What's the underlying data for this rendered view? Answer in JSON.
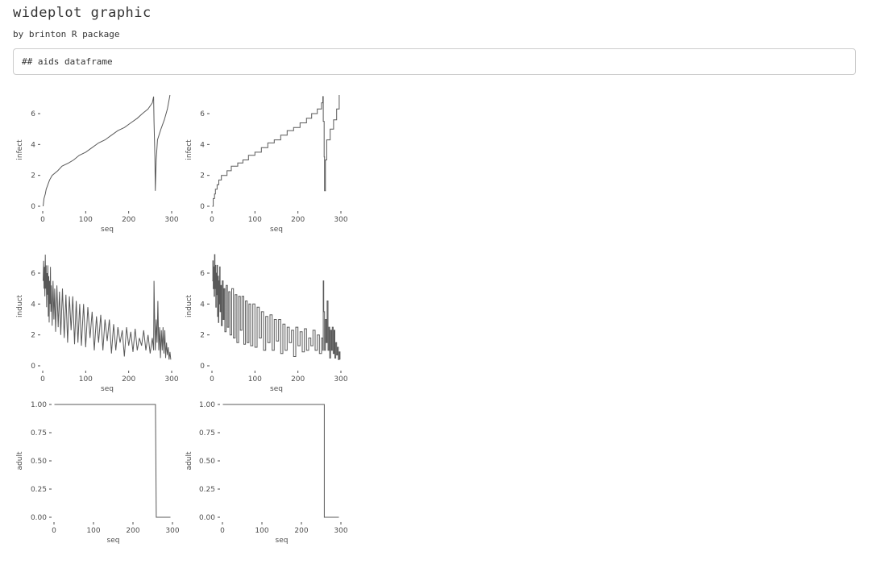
{
  "page": {
    "title": "wideplot graphic",
    "subtitle": "by brinton R package",
    "code_output": "## aids dataframe"
  },
  "colors": {
    "line": "#595959",
    "tick": "#4d4d4d",
    "text": "#4d4d4d"
  },
  "chart_data": [
    {
      "type": "line",
      "panel": "infect-left",
      "xlabel": "seq",
      "ylabel": "infect",
      "xlim": [
        0,
        300
      ],
      "ylim": [
        0,
        7.2
      ],
      "xticks": [
        0,
        100,
        200,
        300
      ],
      "yticks": [
        0,
        2,
        4,
        6
      ],
      "ytick_labels": [
        "0",
        "2",
        "4",
        "6"
      ],
      "step": false,
      "points": [
        [
          1,
          0
        ],
        [
          3,
          0.5
        ],
        [
          6,
          0.8
        ],
        [
          8,
          1.1
        ],
        [
          12,
          1.4
        ],
        [
          16,
          1.7
        ],
        [
          22,
          2.0
        ],
        [
          35,
          2.3
        ],
        [
          45,
          2.6
        ],
        [
          60,
          2.8
        ],
        [
          72,
          3.0
        ],
        [
          85,
          3.3
        ],
        [
          100,
          3.5
        ],
        [
          115,
          3.8
        ],
        [
          130,
          4.1
        ],
        [
          145,
          4.3
        ],
        [
          160,
          4.6
        ],
        [
          175,
          4.9
        ],
        [
          190,
          5.1
        ],
        [
          205,
          5.4
        ],
        [
          220,
          5.7
        ],
        [
          232,
          6.0
        ],
        [
          245,
          6.3
        ],
        [
          255,
          6.7
        ],
        [
          258,
          7.1
        ],
        [
          259,
          5.5
        ],
        [
          261,
          3.2
        ],
        [
          262,
          1.0
        ],
        [
          264,
          3.0
        ],
        [
          267,
          4.3
        ],
        [
          275,
          5.0
        ],
        [
          283,
          5.6
        ],
        [
          290,
          6.3
        ],
        [
          296,
          7.2
        ]
      ]
    },
    {
      "type": "line",
      "panel": "infect-right",
      "xlabel": "seq",
      "ylabel": "infect",
      "xlim": [
        0,
        300
      ],
      "ylim": [
        0,
        7.2
      ],
      "xticks": [
        0,
        100,
        200,
        300
      ],
      "yticks": [
        0,
        2,
        4,
        6
      ],
      "ytick_labels": [
        "0",
        "2",
        "4",
        "6"
      ],
      "step": true,
      "points": [
        [
          1,
          0
        ],
        [
          3,
          0.5
        ],
        [
          6,
          0.8
        ],
        [
          8,
          1.1
        ],
        [
          12,
          1.4
        ],
        [
          16,
          1.7
        ],
        [
          22,
          2.0
        ],
        [
          35,
          2.3
        ],
        [
          45,
          2.6
        ],
        [
          60,
          2.8
        ],
        [
          72,
          3.0
        ],
        [
          85,
          3.3
        ],
        [
          100,
          3.5
        ],
        [
          115,
          3.8
        ],
        [
          130,
          4.1
        ],
        [
          145,
          4.3
        ],
        [
          160,
          4.6
        ],
        [
          175,
          4.9
        ],
        [
          190,
          5.1
        ],
        [
          205,
          5.4
        ],
        [
          220,
          5.7
        ],
        [
          232,
          6.0
        ],
        [
          245,
          6.3
        ],
        [
          255,
          6.7
        ],
        [
          258,
          7.1
        ],
        [
          259,
          5.5
        ],
        [
          261,
          3.2
        ],
        [
          262,
          1.0
        ],
        [
          264,
          3.0
        ],
        [
          267,
          4.3
        ],
        [
          275,
          5.0
        ],
        [
          283,
          5.6
        ],
        [
          290,
          6.3
        ],
        [
          296,
          7.2
        ]
      ]
    },
    {
      "type": "line",
      "panel": "induct-left",
      "xlabel": "seq",
      "ylabel": "induct",
      "xlim": [
        0,
        300
      ],
      "ylim": [
        0,
        7.2
      ],
      "xticks": [
        0,
        100,
        200,
        300
      ],
      "yticks": [
        0,
        2,
        4,
        6
      ],
      "ytick_labels": [
        "0",
        "2",
        "4",
        "6"
      ],
      "step": false,
      "points": [
        [
          1,
          5.5
        ],
        [
          2,
          6.8
        ],
        [
          3,
          5.0
        ],
        [
          4,
          6.4
        ],
        [
          5,
          4.5
        ],
        [
          6,
          7.2
        ],
        [
          7,
          5.0
        ],
        [
          8,
          6.5
        ],
        [
          9,
          3.8
        ],
        [
          10,
          6.0
        ],
        [
          11,
          4.6
        ],
        [
          12,
          6.5
        ],
        [
          13,
          3.2
        ],
        [
          14,
          5.8
        ],
        [
          15,
          2.8
        ],
        [
          16,
          5.5
        ],
        [
          17,
          4.0
        ],
        [
          18,
          6.4
        ],
        [
          19,
          3.5
        ],
        [
          20,
          5.2
        ],
        [
          22,
          2.6
        ],
        [
          24,
          5.5
        ],
        [
          26,
          3.0
        ],
        [
          28,
          5.0
        ],
        [
          30,
          2.2
        ],
        [
          33,
          5.2
        ],
        [
          36,
          2.5
        ],
        [
          39,
          4.8
        ],
        [
          42,
          2.0
        ],
        [
          46,
          5.0
        ],
        [
          50,
          1.8
        ],
        [
          54,
          4.6
        ],
        [
          58,
          1.5
        ],
        [
          62,
          4.5
        ],
        [
          66,
          2.3
        ],
        [
          70,
          4.5
        ],
        [
          74,
          1.4
        ],
        [
          78,
          4.2
        ],
        [
          82,
          1.5
        ],
        [
          86,
          4.0
        ],
        [
          90,
          1.3
        ],
        [
          95,
          4.0
        ],
        [
          100,
          1.2
        ],
        [
          105,
          3.8
        ],
        [
          110,
          1.8
        ],
        [
          115,
          3.5
        ],
        [
          120,
          1.0
        ],
        [
          125,
          3.2
        ],
        [
          130,
          1.5
        ],
        [
          135,
          3.3
        ],
        [
          140,
          1.0
        ],
        [
          145,
          3.0
        ],
        [
          150,
          1.6
        ],
        [
          155,
          3.0
        ],
        [
          160,
          0.8
        ],
        [
          165,
          2.7
        ],
        [
          170,
          1.0
        ],
        [
          175,
          2.5
        ],
        [
          180,
          1.5
        ],
        [
          185,
          2.3
        ],
        [
          190,
          0.6
        ],
        [
          195,
          2.5
        ],
        [
          200,
          1.3
        ],
        [
          205,
          2.2
        ],
        [
          210,
          0.9
        ],
        [
          215,
          2.4
        ],
        [
          220,
          1.0
        ],
        [
          225,
          1.8
        ],
        [
          230,
          1.3
        ],
        [
          235,
          2.3
        ],
        [
          240,
          1.0
        ],
        [
          245,
          2.0
        ],
        [
          250,
          0.8
        ],
        [
          255,
          1.8
        ],
        [
          258,
          1.0
        ],
        [
          259,
          5.5
        ],
        [
          260,
          3.5
        ],
        [
          262,
          1.0
        ],
        [
          264,
          3.0
        ],
        [
          266,
          1.5
        ],
        [
          268,
          4.2
        ],
        [
          270,
          1.0
        ],
        [
          272,
          2.5
        ],
        [
          274,
          0.5
        ],
        [
          276,
          2.3
        ],
        [
          278,
          1.0
        ],
        [
          280,
          2.5
        ],
        [
          282,
          0.8
        ],
        [
          284,
          2.3
        ],
        [
          286,
          0.5
        ],
        [
          288,
          1.5
        ],
        [
          290,
          0.7
        ],
        [
          292,
          1.2
        ],
        [
          294,
          0.4
        ],
        [
          296,
          0.9
        ],
        [
          298,
          0.4
        ]
      ]
    },
    {
      "type": "line",
      "panel": "induct-right",
      "xlabel": "seq",
      "ylabel": "induct",
      "xlim": [
        0,
        300
      ],
      "ylim": [
        0,
        7.2
      ],
      "xticks": [
        0,
        100,
        200,
        300
      ],
      "yticks": [
        0,
        2,
        4,
        6
      ],
      "ytick_labels": [
        "0",
        "2",
        "4",
        "6"
      ],
      "step": true,
      "points": [
        [
          1,
          5.5
        ],
        [
          2,
          6.8
        ],
        [
          3,
          5.0
        ],
        [
          4,
          6.4
        ],
        [
          5,
          4.5
        ],
        [
          6,
          7.2
        ],
        [
          7,
          5.0
        ],
        [
          8,
          6.5
        ],
        [
          9,
          3.8
        ],
        [
          10,
          6.0
        ],
        [
          11,
          4.6
        ],
        [
          12,
          6.5
        ],
        [
          13,
          3.2
        ],
        [
          14,
          5.8
        ],
        [
          15,
          2.8
        ],
        [
          16,
          5.5
        ],
        [
          17,
          4.0
        ],
        [
          18,
          6.4
        ],
        [
          19,
          3.5
        ],
        [
          20,
          5.2
        ],
        [
          22,
          2.6
        ],
        [
          24,
          5.5
        ],
        [
          26,
          3.0
        ],
        [
          28,
          5.0
        ],
        [
          30,
          2.2
        ],
        [
          33,
          5.2
        ],
        [
          36,
          2.5
        ],
        [
          39,
          4.8
        ],
        [
          42,
          2.0
        ],
        [
          46,
          5.0
        ],
        [
          50,
          1.8
        ],
        [
          54,
          4.6
        ],
        [
          58,
          1.5
        ],
        [
          62,
          4.5
        ],
        [
          66,
          2.3
        ],
        [
          70,
          4.5
        ],
        [
          74,
          1.4
        ],
        [
          78,
          4.2
        ],
        [
          82,
          1.5
        ],
        [
          86,
          4.0
        ],
        [
          90,
          1.3
        ],
        [
          95,
          4.0
        ],
        [
          100,
          1.2
        ],
        [
          105,
          3.8
        ],
        [
          110,
          1.8
        ],
        [
          115,
          3.5
        ],
        [
          120,
          1.0
        ],
        [
          125,
          3.2
        ],
        [
          130,
          1.5
        ],
        [
          135,
          3.3
        ],
        [
          140,
          1.0
        ],
        [
          145,
          3.0
        ],
        [
          150,
          1.6
        ],
        [
          155,
          3.0
        ],
        [
          160,
          0.8
        ],
        [
          165,
          2.7
        ],
        [
          170,
          1.0
        ],
        [
          175,
          2.5
        ],
        [
          180,
          1.5
        ],
        [
          185,
          2.3
        ],
        [
          190,
          0.6
        ],
        [
          195,
          2.5
        ],
        [
          200,
          1.3
        ],
        [
          205,
          2.2
        ],
        [
          210,
          0.9
        ],
        [
          215,
          2.4
        ],
        [
          220,
          1.0
        ],
        [
          225,
          1.8
        ],
        [
          230,
          1.3
        ],
        [
          235,
          2.3
        ],
        [
          240,
          1.0
        ],
        [
          245,
          2.0
        ],
        [
          250,
          0.8
        ],
        [
          255,
          1.8
        ],
        [
          258,
          1.0
        ],
        [
          259,
          5.5
        ],
        [
          260,
          3.5
        ],
        [
          262,
          1.0
        ],
        [
          264,
          3.0
        ],
        [
          266,
          1.5
        ],
        [
          268,
          4.2
        ],
        [
          270,
          1.0
        ],
        [
          272,
          2.5
        ],
        [
          274,
          0.5
        ],
        [
          276,
          2.3
        ],
        [
          278,
          1.0
        ],
        [
          280,
          2.5
        ],
        [
          282,
          0.8
        ],
        [
          284,
          2.3
        ],
        [
          286,
          0.5
        ],
        [
          288,
          1.5
        ],
        [
          290,
          0.7
        ],
        [
          292,
          1.2
        ],
        [
          294,
          0.4
        ],
        [
          296,
          0.9
        ],
        [
          298,
          0.4
        ]
      ]
    },
    {
      "type": "line",
      "panel": "adult-left",
      "xlabel": "seq",
      "ylabel": "adult",
      "xlim": [
        0,
        300
      ],
      "ylim": [
        0,
        1
      ],
      "xticks": [
        0,
        100,
        200,
        300
      ],
      "yticks": [
        0,
        0.25,
        0.5,
        0.75,
        1
      ],
      "ytick_labels": [
        "0.00",
        "0.25",
        "0.50",
        "0.75",
        "1.00"
      ],
      "step": false,
      "points": [
        [
          1,
          1
        ],
        [
          257,
          1
        ],
        [
          258,
          0.5
        ],
        [
          259,
          0
        ],
        [
          295,
          0
        ]
      ]
    },
    {
      "type": "line",
      "panel": "adult-right",
      "xlabel": "seq",
      "ylabel": "adult",
      "xlim": [
        0,
        300
      ],
      "ylim": [
        0,
        1
      ],
      "xticks": [
        0,
        100,
        200,
        300
      ],
      "yticks": [
        0,
        0.25,
        0.5,
        0.75,
        1
      ],
      "ytick_labels": [
        "0.00",
        "0.25",
        "0.50",
        "0.75",
        "1.00"
      ],
      "step": true,
      "points": [
        [
          1,
          1
        ],
        [
          257,
          1
        ],
        [
          258,
          0
        ],
        [
          295,
          0
        ]
      ]
    }
  ]
}
